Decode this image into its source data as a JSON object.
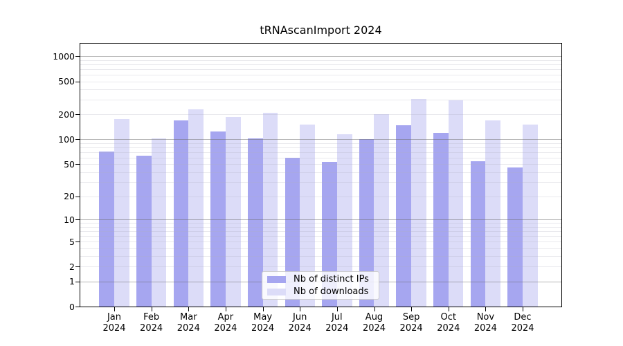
{
  "chart_data": {
    "type": "bar",
    "title": "tRNAscanImport 2024",
    "xlabel": "",
    "ylabel": "",
    "categories": [
      "Jan 2024",
      "Feb 2024",
      "Mar 2024",
      "Apr 2024",
      "May 2024",
      "Jun 2024",
      "Jul 2024",
      "Aug 2024",
      "Sep 2024",
      "Oct 2024",
      "Nov 2024",
      "Dec 2024"
    ],
    "series": [
      {
        "name": "Nb of distinct IPs",
        "color": "#a6a6f0",
        "values": [
          71,
          63,
          169,
          125,
          103,
          60,
          53,
          100,
          147,
          119,
          54,
          46
        ]
      },
      {
        "name": "Nb of downloads",
        "color": "#dcdcf8",
        "values": [
          175,
          102,
          232,
          188,
          210,
          152,
          115,
          201,
          310,
          294,
          171,
          151
        ]
      }
    ],
    "y_axis": {
      "scale": "log1p",
      "min": 0,
      "max": 1420,
      "ticks": [
        0,
        1,
        2,
        5,
        10,
        20,
        50,
        100,
        200,
        500,
        1000
      ]
    },
    "grid": {
      "on": true,
      "major": [
        1,
        10,
        100,
        1000
      ],
      "minor": [
        2,
        3,
        4,
        5,
        6,
        7,
        8,
        9,
        20,
        30,
        40,
        50,
        60,
        70,
        80,
        90,
        200,
        300,
        400,
        500,
        600,
        700,
        800,
        900
      ]
    },
    "legend": {
      "position": "bottom-center-inside",
      "entries": [
        "Nb of distinct IPs",
        "Nb of downloads"
      ]
    }
  },
  "colors": {
    "bar_distinct_ips": "#a6a6f0",
    "bar_downloads": "#dcdcf8",
    "spine": "#000000",
    "grid_major": "#b5b5b5",
    "grid_minor": "#e9e9ef",
    "background": "#ffffff",
    "text": "#000000"
  }
}
